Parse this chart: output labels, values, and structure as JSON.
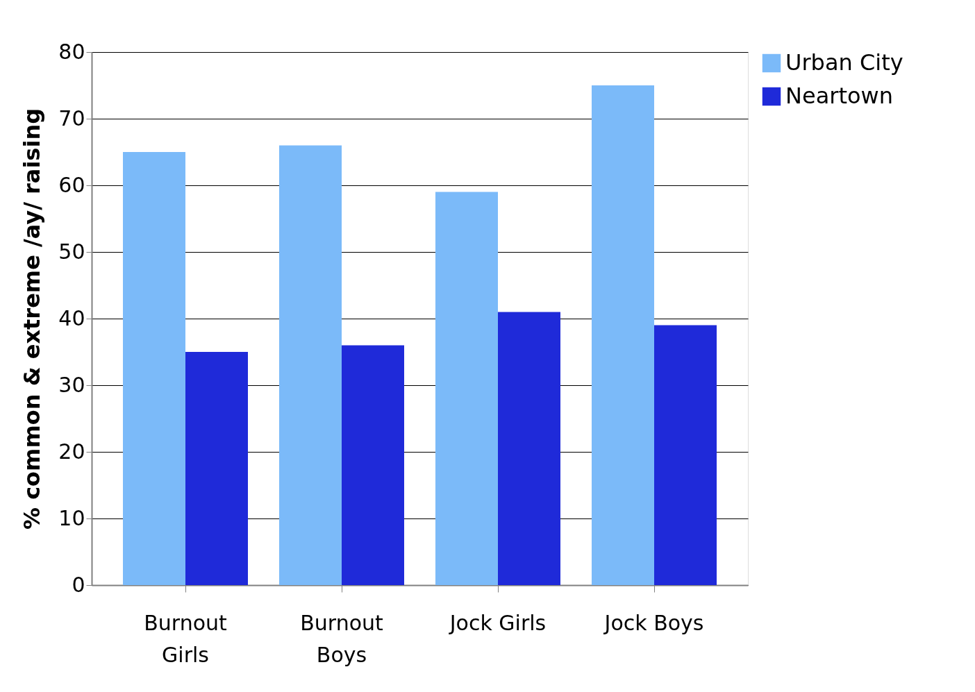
{
  "chart_data": {
    "type": "bar",
    "ylabel": "% common & extreme /ay/ raising",
    "categories": [
      "Burnout Girls",
      "Burnout Boys",
      "Jock Girls",
      "Jock Boys"
    ],
    "series": [
      {
        "name": "Urban City",
        "color": "#7bbaf9",
        "values": [
          65,
          66,
          59,
          75
        ]
      },
      {
        "name": "Neartown",
        "color": "#1f2ad9",
        "values": [
          35,
          36,
          41,
          39
        ]
      }
    ],
    "ylim": [
      0,
      80
    ],
    "yticks": [
      0,
      10,
      20,
      30,
      40,
      50,
      60,
      70,
      80
    ],
    "grid": "y",
    "legend": "right"
  }
}
